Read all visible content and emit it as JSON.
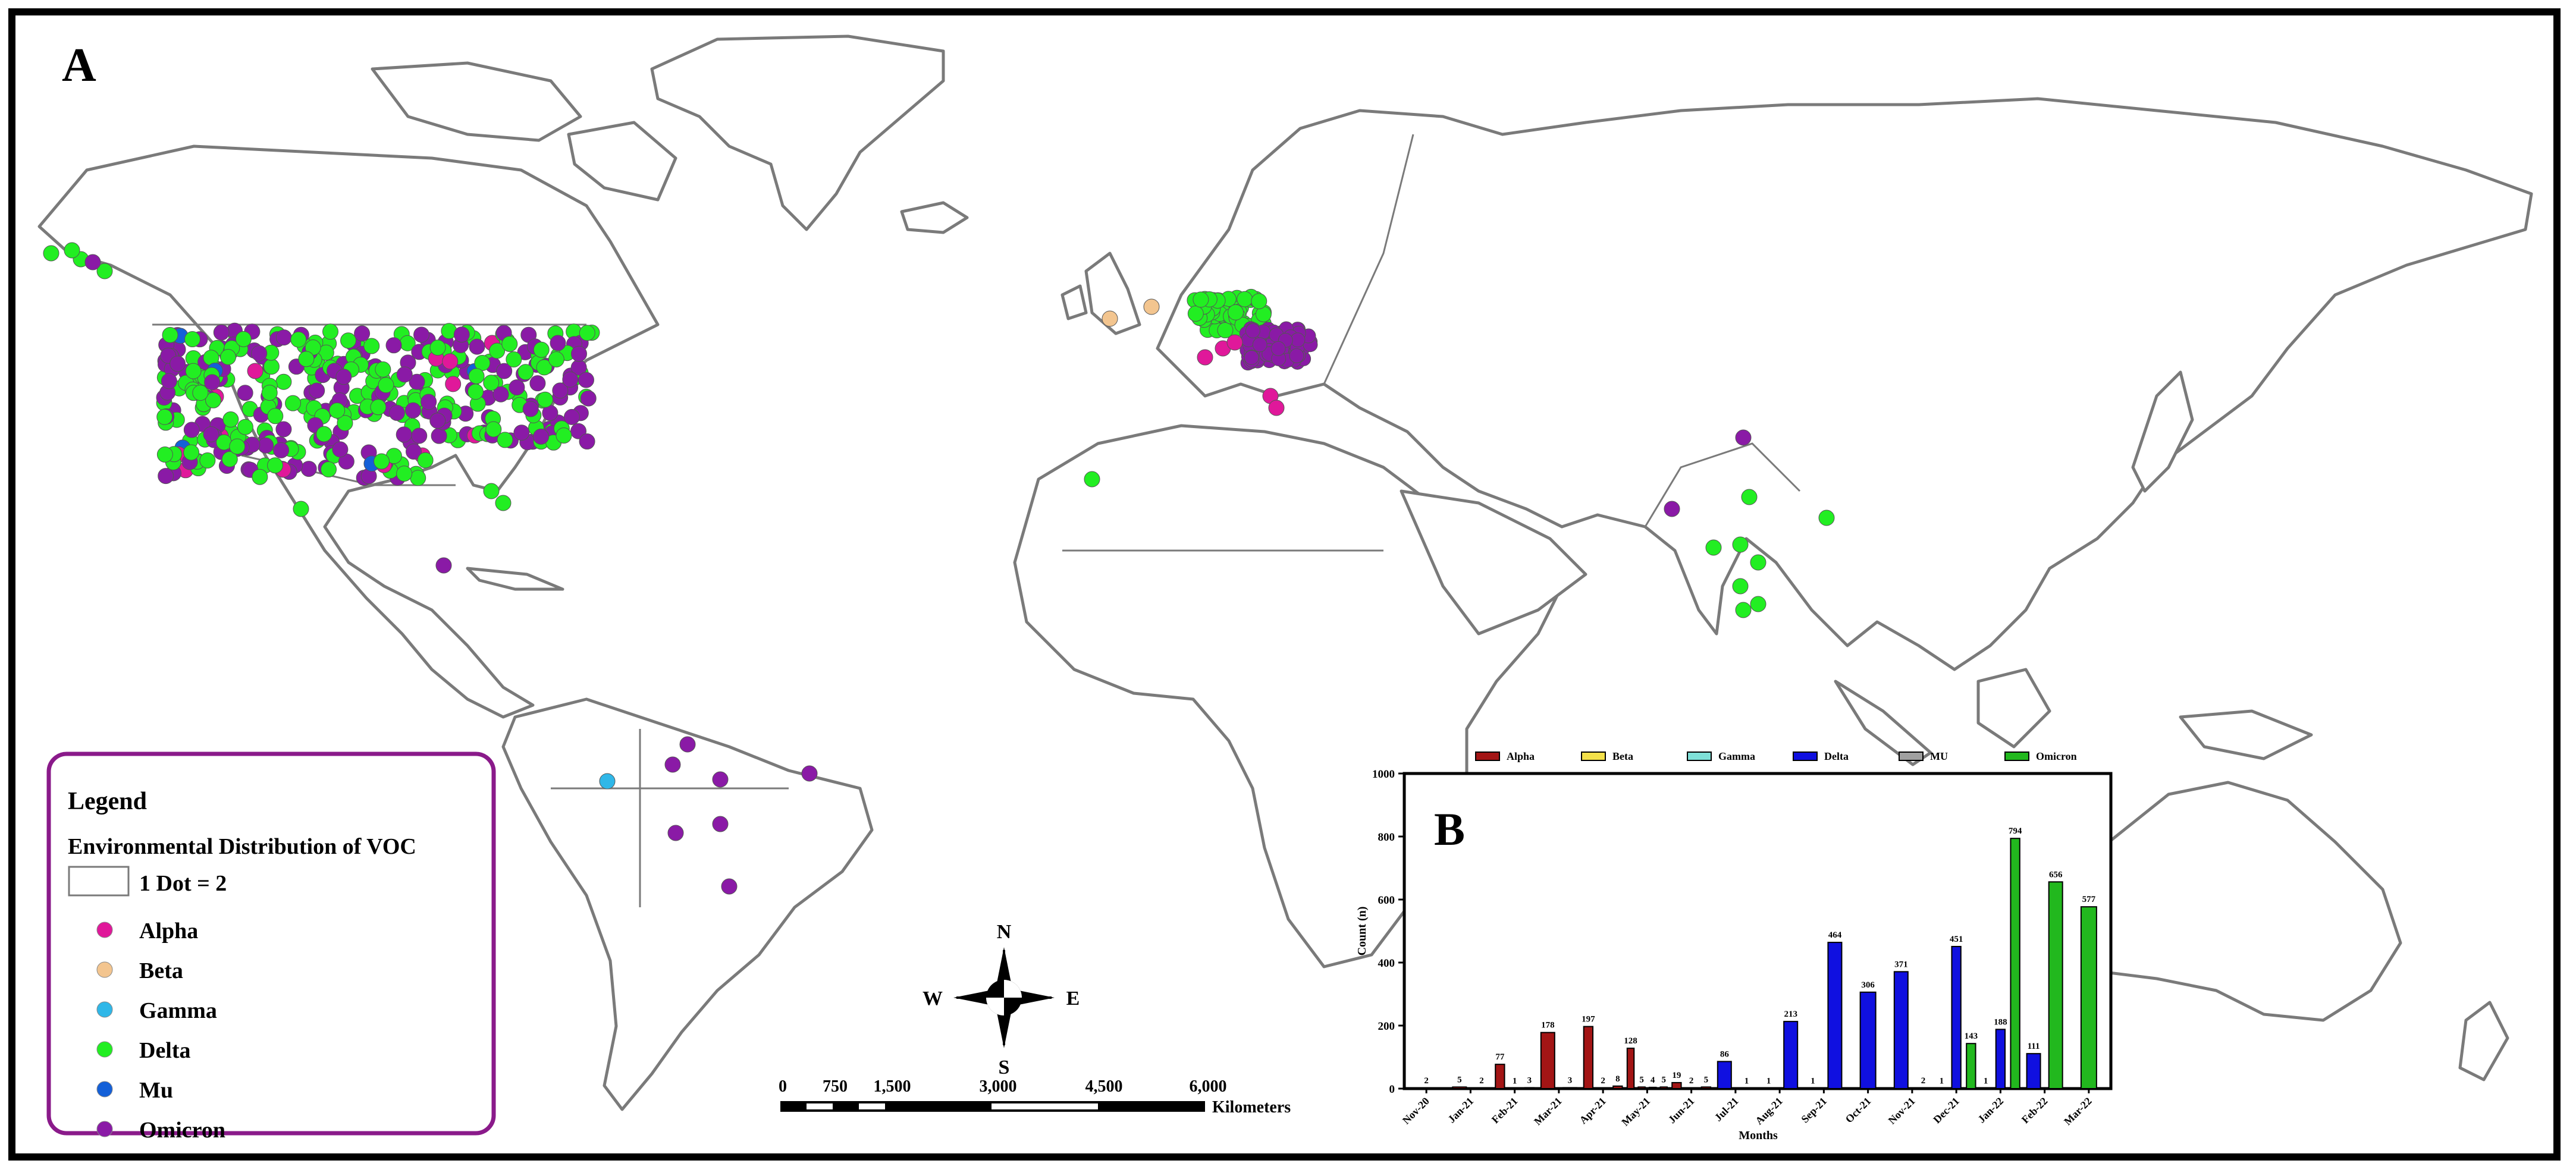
{
  "panel_a": {
    "letter": "A",
    "legend": {
      "title": "Legend",
      "subtitle": "Environmental Distribution of VOC",
      "dot_scale": "1 Dot = 2",
      "items": [
        {
          "label": "Alpha",
          "color": "#e0189a"
        },
        {
          "label": "Beta",
          "color": "#f3c58f"
        },
        {
          "label": "Gamma",
          "color": "#2fb7e8"
        },
        {
          "label": "Delta",
          "color": "#22ee22"
        },
        {
          "label": "Mu",
          "color": "#1460d8"
        },
        {
          "label": "Omicron",
          "color": "#8a1aa6"
        }
      ]
    },
    "compass": {
      "n": "N",
      "s": "S",
      "e": "E",
      "w": "W"
    },
    "scale_bar": {
      "ticks": [
        "0",
        "750",
        "1,500",
        "3,000",
        "4,500",
        "6,000"
      ],
      "unit": "Kilometers"
    },
    "colors": {
      "land_outline": "#7a7a7a",
      "legend_border": "#8a1a8a"
    }
  },
  "panel_b": {
    "letter": "B",
    "chart_data": {
      "type": "bar",
      "ylabel": "Count (n)",
      "xlabel": "Months",
      "ylim": [
        0,
        1000
      ],
      "yticks": [
        0,
        200,
        400,
        600,
        800,
        1000
      ],
      "legend_position": "top",
      "categories": [
        "Nov-20",
        "Jan-21",
        "Feb-21",
        "Mar-21",
        "Apr-21",
        "May-21",
        "Jun-21",
        "Jul-21",
        "Aug-21",
        "Sep-21",
        "Oct-21",
        "Nov-21",
        "Dec-21",
        "Jan-22",
        "Feb-22",
        "Mar-22"
      ],
      "series": [
        {
          "name": "Alpha",
          "color": "#a31515",
          "bars": [
            {
              "x": "Nov-20",
              "v": 2
            },
            {
              "x": "Jan-21",
              "v": 5
            },
            {
              "x": "Jan-21",
              "v": 2
            },
            {
              "x": "Feb-21",
              "v": 77
            },
            {
              "x": "Feb-21",
              "v": 1
            },
            {
              "x": "Feb-21",
              "v": 3
            },
            {
              "x": "Mar-21",
              "v": 178
            },
            {
              "x": "Mar-21",
              "v": 3
            },
            {
              "x": "Apr-21",
              "v": 197
            },
            {
              "x": "Apr-21",
              "v": 2
            },
            {
              "x": "Apr-21",
              "v": 8
            },
            {
              "x": "May-21",
              "v": 128
            },
            {
              "x": "May-21",
              "v": 5
            },
            {
              "x": "May-21",
              "v": 4
            },
            {
              "x": "May-21",
              "v": 5
            },
            {
              "x": "Jun-21",
              "v": 19
            },
            {
              "x": "Jun-21",
              "v": 2
            },
            {
              "x": "Jun-21",
              "v": 5
            }
          ]
        },
        {
          "name": "Beta",
          "color": "#f3e04a",
          "bars": []
        },
        {
          "name": "Gamma",
          "color": "#7fe0d8",
          "bars": []
        },
        {
          "name": "Delta",
          "color": "#1010e0",
          "bars": [
            {
              "x": "Jul-21",
              "v": 86
            },
            {
              "x": "Jul-21",
              "v": 1
            },
            {
              "x": "Aug-21",
              "v": 1
            },
            {
              "x": "Aug-21",
              "v": 213
            },
            {
              "x": "Sep-21",
              "v": 1
            },
            {
              "x": "Sep-21",
              "v": 464
            },
            {
              "x": "Oct-21",
              "v": 306
            },
            {
              "x": "Nov-21",
              "v": 371
            },
            {
              "x": "Nov-21",
              "v": 2
            },
            {
              "x": "Dec-21",
              "v": 1
            },
            {
              "x": "Dec-21",
              "v": 451
            },
            {
              "x": "Jan-22",
              "v": 1
            },
            {
              "x": "Jan-22",
              "v": 188
            },
            {
              "x": "Feb-22",
              "v": 111
            }
          ]
        },
        {
          "name": "MU",
          "color": "#a0a0a0",
          "bars": []
        },
        {
          "name": "Omicron",
          "color": "#22b81e",
          "bars": [
            {
              "x": "Dec-21",
              "v": 143
            },
            {
              "x": "Jan-22",
              "v": 794
            },
            {
              "x": "Feb-22",
              "v": 656
            },
            {
              "x": "Mar-22",
              "v": 577
            }
          ]
        }
      ]
    }
  }
}
